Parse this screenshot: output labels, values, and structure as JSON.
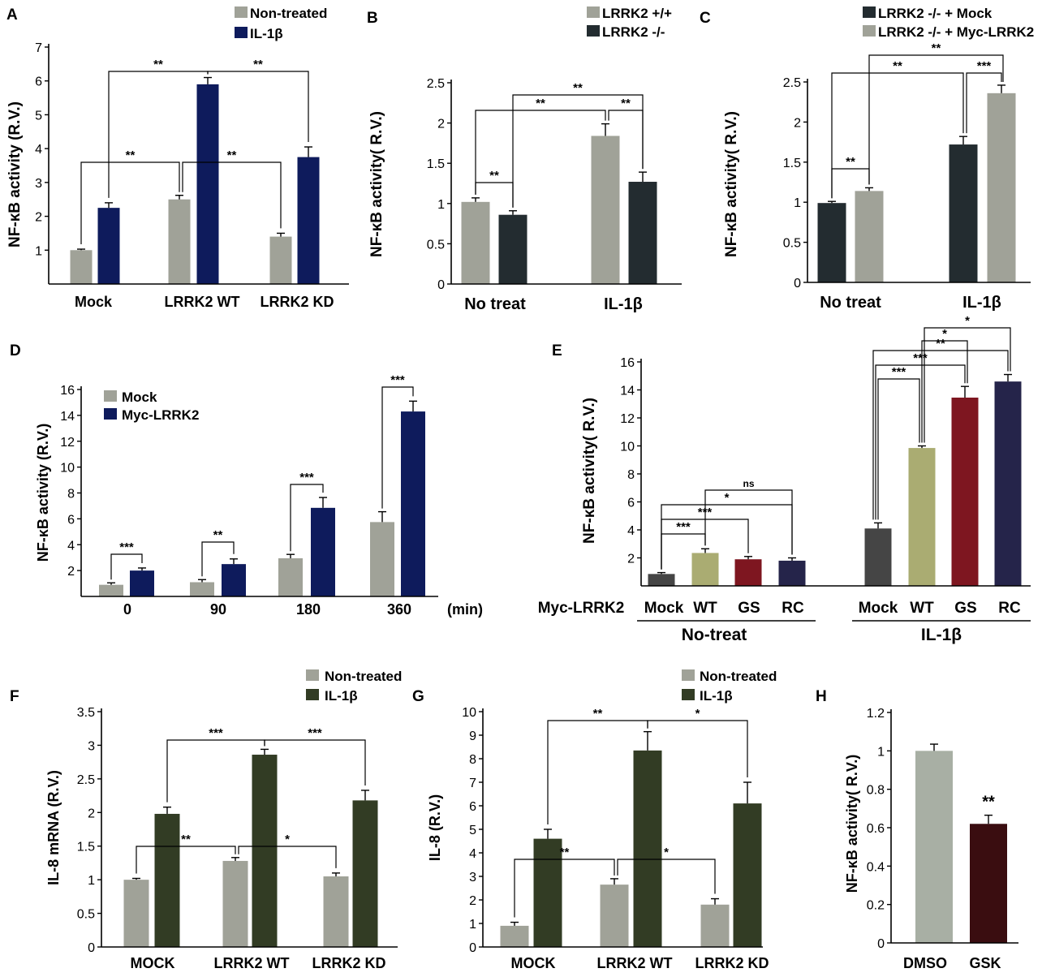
{
  "figure": {
    "colors": {
      "gray": "#a0a298",
      "navy": "#0e1b5c",
      "charcoal": "#232c30",
      "darkgreen": "#323c24",
      "darkgray": "#454545",
      "olive": "#aaac72",
      "crimson": "#7e1620",
      "midnight": "#25244a",
      "graygreen": "#a8afa4",
      "maroon": "#3a0d10"
    },
    "x_unit": "(min)",
    "group_labels": {
      "no_treat": "No-treat",
      "il1b": "IL-1β"
    },
    "row_label_E": "Myc-LRRK2"
  },
  "chart_data": [
    {
      "panel": "A",
      "type": "bar",
      "ylabel": "NF-κB activity (R.V.)",
      "ylim": [
        0,
        7
      ],
      "yticks": [
        "1",
        "2",
        "3",
        "4",
        "5",
        "6",
        "7"
      ],
      "categories": [
        "Mock",
        "LRRK2 WT",
        "LRRK2 KD"
      ],
      "series": [
        {
          "name": "Non-treated",
          "color": "gray",
          "values": [
            1.0,
            2.5,
            1.4
          ],
          "errors": [
            0.03,
            0.12,
            0.1
          ]
        },
        {
          "name": "IL-1β",
          "color": "navy",
          "values": [
            2.25,
            5.9,
            3.75
          ],
          "errors": [
            0.15,
            0.2,
            0.3
          ]
        }
      ],
      "annotations": [
        {
          "label": "**",
          "from": [
            1,
            1
          ],
          "to": [
            0,
            1
          ]
        },
        {
          "label": "**",
          "from": [
            1,
            1
          ],
          "to": [
            2,
            1
          ]
        },
        {
          "label": "**",
          "from": [
            1,
            0
          ],
          "to": [
            0,
            0
          ]
        },
        {
          "label": "**",
          "from": [
            1,
            0
          ],
          "to": [
            2,
            0
          ]
        }
      ]
    },
    {
      "panel": "B",
      "type": "bar",
      "ylabel": "NF-κB activity( R.V.)",
      "ylim": [
        0,
        2.5
      ],
      "yticks": [
        "0",
        "0.5",
        "1",
        "1.5",
        "2",
        "2.5"
      ],
      "categories": [
        "No treat",
        "IL-1β"
      ],
      "series": [
        {
          "name": "LRRK2 +/+",
          "color": "gray",
          "values": [
            1.02,
            1.84
          ],
          "errors": [
            0.05,
            0.15
          ]
        },
        {
          "name": "LRRK2 -/-",
          "color": "charcoal",
          "values": [
            0.86,
            1.27
          ],
          "errors": [
            0.05,
            0.12
          ]
        }
      ],
      "annotations": [
        {
          "label": "**",
          "from": [
            0,
            0
          ],
          "to": [
            0,
            1
          ]
        },
        {
          "label": "**",
          "from": [
            1,
            0
          ],
          "to": [
            0,
            0
          ]
        },
        {
          "label": "**",
          "from": [
            1,
            1
          ],
          "to": [
            0,
            1
          ]
        },
        {
          "label": "**",
          "from": [
            1,
            0
          ],
          "to": [
            1,
            1
          ]
        }
      ]
    },
    {
      "panel": "C",
      "type": "bar",
      "ylabel": "NF-κB activity( R.V.)",
      "ylim": [
        0,
        2.5
      ],
      "yticks": [
        "0",
        "0.5",
        "1",
        "1.5",
        "2",
        "2.5"
      ],
      "categories": [
        "No treat",
        "IL-1β"
      ],
      "series": [
        {
          "name": "LRRK2 -/- + Mock",
          "color": "charcoal",
          "values": [
            0.99,
            1.72
          ],
          "errors": [
            0.02,
            0.1
          ]
        },
        {
          "name": "LRRK2 -/- + Myc-LRRK2",
          "color": "gray",
          "values": [
            1.14,
            2.36
          ],
          "errors": [
            0.04,
            0.1
          ]
        }
      ],
      "annotations": [
        {
          "label": "**",
          "from": [
            0,
            0
          ],
          "to": [
            0,
            1
          ]
        },
        {
          "label": "**",
          "from": [
            1,
            0
          ],
          "to": [
            0,
            0
          ]
        },
        {
          "label": "***",
          "from": [
            1,
            0
          ],
          "to": [
            1,
            1
          ]
        },
        {
          "label": "**",
          "from": [
            1,
            1
          ],
          "to": [
            0,
            1
          ]
        }
      ]
    },
    {
      "panel": "D",
      "type": "bar",
      "ylabel": "NF-κB activity (R.V.)",
      "ylim": [
        0,
        16
      ],
      "yticks": [
        "2",
        "4",
        "6",
        "8",
        "10",
        "12",
        "14",
        "16"
      ],
      "categories": [
        "0",
        "90",
        "180",
        "360"
      ],
      "series": [
        {
          "name": "Mock",
          "color": "gray",
          "values": [
            0.9,
            1.1,
            2.95,
            5.75
          ],
          "errors": [
            0.15,
            0.2,
            0.3,
            0.8
          ]
        },
        {
          "name": "Myc-LRRK2",
          "color": "navy",
          "values": [
            2.0,
            2.5,
            6.85,
            14.3
          ],
          "errors": [
            0.2,
            0.4,
            0.8,
            0.8
          ]
        }
      ],
      "annotations": [
        {
          "label": "***",
          "from": [
            0,
            0
          ],
          "to": [
            0,
            1
          ]
        },
        {
          "label": "**",
          "from": [
            1,
            0
          ],
          "to": [
            1,
            1
          ]
        },
        {
          "label": "***",
          "from": [
            2,
            0
          ],
          "to": [
            2,
            1
          ]
        },
        {
          "label": "***",
          "from": [
            3,
            0
          ],
          "to": [
            3,
            1
          ]
        }
      ]
    },
    {
      "panel": "E",
      "type": "bar",
      "ylabel": "NF-κB activity( R.V.)",
      "ylim": [
        0,
        16
      ],
      "yticks": [
        "2",
        "4",
        "6",
        "8",
        "10",
        "12",
        "14",
        "16"
      ],
      "categories": [
        "Mock",
        "WT",
        "GS",
        "RC",
        "Mock",
        "WT",
        "GS",
        "RC"
      ],
      "series": [
        {
          "name": "NF-κB",
          "values": [
            0.85,
            2.35,
            1.9,
            1.8,
            4.1,
            9.85,
            13.45,
            14.6
          ],
          "errors": [
            0.1,
            0.3,
            0.2,
            0.2,
            0.4,
            0.15,
            0.8,
            0.5
          ],
          "colors": [
            "darkgray",
            "olive",
            "crimson",
            "midnight",
            "darkgray",
            "olive",
            "crimson",
            "midnight"
          ]
        }
      ],
      "annotations": [
        {
          "label": "***",
          "from": 0,
          "to": 1
        },
        {
          "label": "***",
          "from": 0,
          "to": 2
        },
        {
          "label": "*",
          "from": 0,
          "to": 3
        },
        {
          "label": "ns",
          "from": 1,
          "to": 3
        },
        {
          "label": "***",
          "from": 4,
          "to": 5
        },
        {
          "label": "***",
          "from": 4,
          "to": 6
        },
        {
          "label": "**",
          "from": 4,
          "to": 7
        },
        {
          "label": "*",
          "from": 5,
          "to": 6
        },
        {
          "label": "*",
          "from": 5,
          "to": 7
        }
      ]
    },
    {
      "panel": "F",
      "type": "bar",
      "ylabel": "IL-8 mRNA (R.V.)",
      "ylim": [
        0,
        3.5
      ],
      "yticks": [
        "0",
        "0.5",
        "1",
        "1.5",
        "2",
        "2.5",
        "3",
        "3.5"
      ],
      "categories": [
        "MOCK",
        "LRRK2 WT",
        "LRRK2 KD"
      ],
      "series": [
        {
          "name": "Non-treated",
          "color": "gray",
          "values": [
            1.0,
            1.28,
            1.05
          ],
          "errors": [
            0.02,
            0.05,
            0.05
          ]
        },
        {
          "name": "IL-1β",
          "color": "darkgreen",
          "values": [
            1.98,
            2.86,
            2.18
          ],
          "errors": [
            0.1,
            0.08,
            0.15
          ]
        }
      ],
      "annotations": [
        {
          "label": "***",
          "from": [
            1,
            1
          ],
          "to": [
            0,
            1
          ]
        },
        {
          "label": "***",
          "from": [
            1,
            1
          ],
          "to": [
            2,
            1
          ]
        },
        {
          "label": "**",
          "from": [
            1,
            0
          ],
          "to": [
            0,
            0
          ]
        },
        {
          "label": "*",
          "from": [
            1,
            0
          ],
          "to": [
            2,
            0
          ]
        }
      ]
    },
    {
      "panel": "G",
      "type": "bar",
      "ylabel": "IL-8  (R.V.)",
      "ylim": [
        0,
        10
      ],
      "yticks": [
        "0",
        "1",
        "2",
        "3",
        "4",
        "5",
        "6",
        "7",
        "8",
        "9",
        "10"
      ],
      "categories": [
        "MOCK",
        "LRRK2 WT",
        "LRRK2 KD"
      ],
      "series": [
        {
          "name": "Non-treated",
          "color": "gray",
          "values": [
            0.9,
            2.65,
            1.8
          ],
          "errors": [
            0.15,
            0.25,
            0.25
          ]
        },
        {
          "name": "IL-1β",
          "color": "darkgreen",
          "values": [
            4.6,
            8.35,
            6.1
          ],
          "errors": [
            0.4,
            0.8,
            0.9
          ]
        }
      ],
      "annotations": [
        {
          "label": "**",
          "from": [
            1,
            1
          ],
          "to": [
            0,
            1
          ]
        },
        {
          "label": "*",
          "from": [
            1,
            1
          ],
          "to": [
            2,
            1
          ]
        },
        {
          "label": "**",
          "from": [
            1,
            0
          ],
          "to": [
            0,
            0
          ]
        },
        {
          "label": "*",
          "from": [
            1,
            0
          ],
          "to": [
            2,
            0
          ]
        }
      ]
    },
    {
      "panel": "H",
      "type": "bar",
      "ylabel": "NF-κB activity( R.V.)",
      "ylim": [
        0,
        1.2
      ],
      "yticks": [
        "0",
        "0.2",
        "0.4",
        "0.6",
        "0.8",
        "1",
        "1.2"
      ],
      "categories": [
        "DMSO",
        "GSK"
      ],
      "series": [
        {
          "name": "NF-κB",
          "values": [
            1.0,
            0.62
          ],
          "errors": [
            0.035,
            0.045
          ],
          "colors": [
            "graygreen",
            "maroon"
          ]
        }
      ],
      "annotations": [
        {
          "label": "**",
          "on": 1
        }
      ]
    }
  ]
}
